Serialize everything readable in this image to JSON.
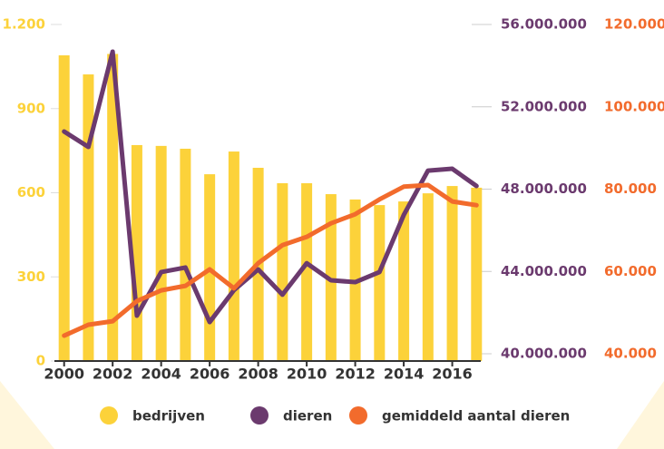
{
  "chart_data": {
    "type": "bar-line",
    "x": [
      2000,
      2001,
      2002,
      2003,
      2004,
      2005,
      2006,
      2007,
      2008,
      2009,
      2010,
      2011,
      2012,
      2013,
      2014,
      2015,
      2016,
      2017
    ],
    "xlim": [
      1999.6,
      2017.4
    ],
    "xticks": [
      2000,
      2002,
      2004,
      2006,
      2008,
      2010,
      2012,
      2014,
      2016
    ],
    "ylim": [
      0,
      1200
    ],
    "yticks": [
      0,
      300,
      600,
      900,
      {
        "value": 1200,
        "label": "1.200"
      }
    ],
    "y2lim": [
      40000000,
      56000000
    ],
    "y2ticks": [
      {
        "value": 40000000,
        "label": "40.000.000"
      },
      {
        "value": 44000000,
        "label": "44.000.000"
      },
      {
        "value": 48000000,
        "label": "48.000.000"
      },
      {
        "value": 52000000,
        "label": "52.000.000"
      },
      {
        "value": 56000000,
        "label": "56.000.000"
      }
    ],
    "y3lim": [
      40000,
      120000
    ],
    "y3ticks": [
      {
        "value": 40000,
        "label": "40.000"
      },
      {
        "value": 60000,
        "label": "60.000"
      },
      {
        "value": 80000,
        "label": "80.000"
      },
      {
        "value": 100000,
        "label": "100.000"
      },
      {
        "value": 120000,
        "label": "120.000"
      }
    ],
    "series": [
      {
        "name": "bedrijven",
        "type": "bar",
        "color": "#fcd23a",
        "values": [
          1090,
          1022,
          1095,
          770,
          767,
          757,
          666,
          747,
          689,
          634,
          634,
          595,
          576,
          556,
          569,
          598,
          624,
          618
        ]
      },
      {
        "name": "dieren",
        "type": "line",
        "axis": "y2",
        "color": "#6b3a6e",
        "values": [
          50800000,
          50050000,
          54680000,
          41850000,
          43970000,
          44190000,
          41540000,
          43090000,
          44100000,
          42870000,
          44400000,
          43570000,
          43480000,
          43970000,
          46740000,
          48900000,
          48990000,
          48150000
        ]
      },
      {
        "name": "gemiddeld aantal dieren",
        "type": "line",
        "axis": "y3",
        "color": "#f26b2c",
        "values": [
          44400,
          47050,
          47900,
          52800,
          55400,
          56500,
          60500,
          55900,
          62000,
          66400,
          68400,
          71700,
          73900,
          77500,
          80600,
          81000,
          77000,
          76100
        ]
      }
    ]
  }
}
